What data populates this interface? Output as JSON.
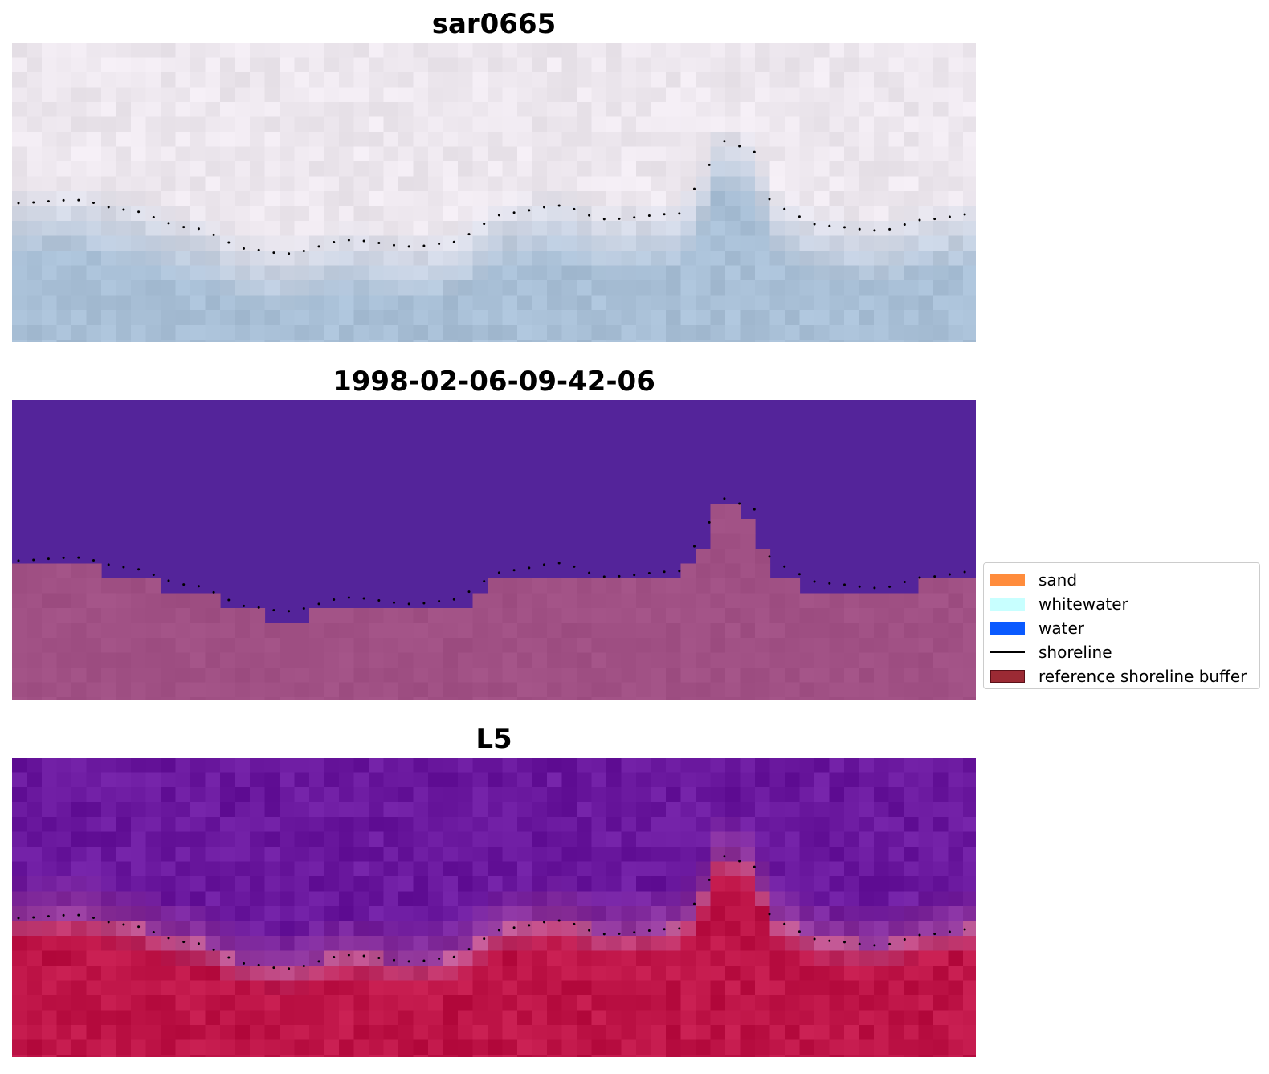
{
  "panels": [
    {
      "title": "sar0665"
    },
    {
      "title": "1998-02-06-09-42-06"
    },
    {
      "title": "L5"
    }
  ],
  "legend": {
    "items": [
      {
        "label": "sand",
        "color": "#ff8c3c",
        "kind": "patch"
      },
      {
        "label": "whitewater",
        "color": "#c8ffff",
        "kind": "patch"
      },
      {
        "label": "water",
        "color": "#0a5aff",
        "kind": "patch"
      },
      {
        "label": "shoreline",
        "color": "#000000",
        "kind": "line"
      },
      {
        "label": "reference shoreline buffer",
        "color": "#9b2a34",
        "kind": "patch"
      }
    ]
  },
  "colors": {
    "sar_top": "#ede7ee",
    "sar_bottom": "#a8bfd6",
    "class_upper": "#54249a",
    "class_lower": "#a05084",
    "l5_upper": "#6a189e",
    "l5_lower": "#be1447",
    "shoreline_dots": "#000000"
  }
}
